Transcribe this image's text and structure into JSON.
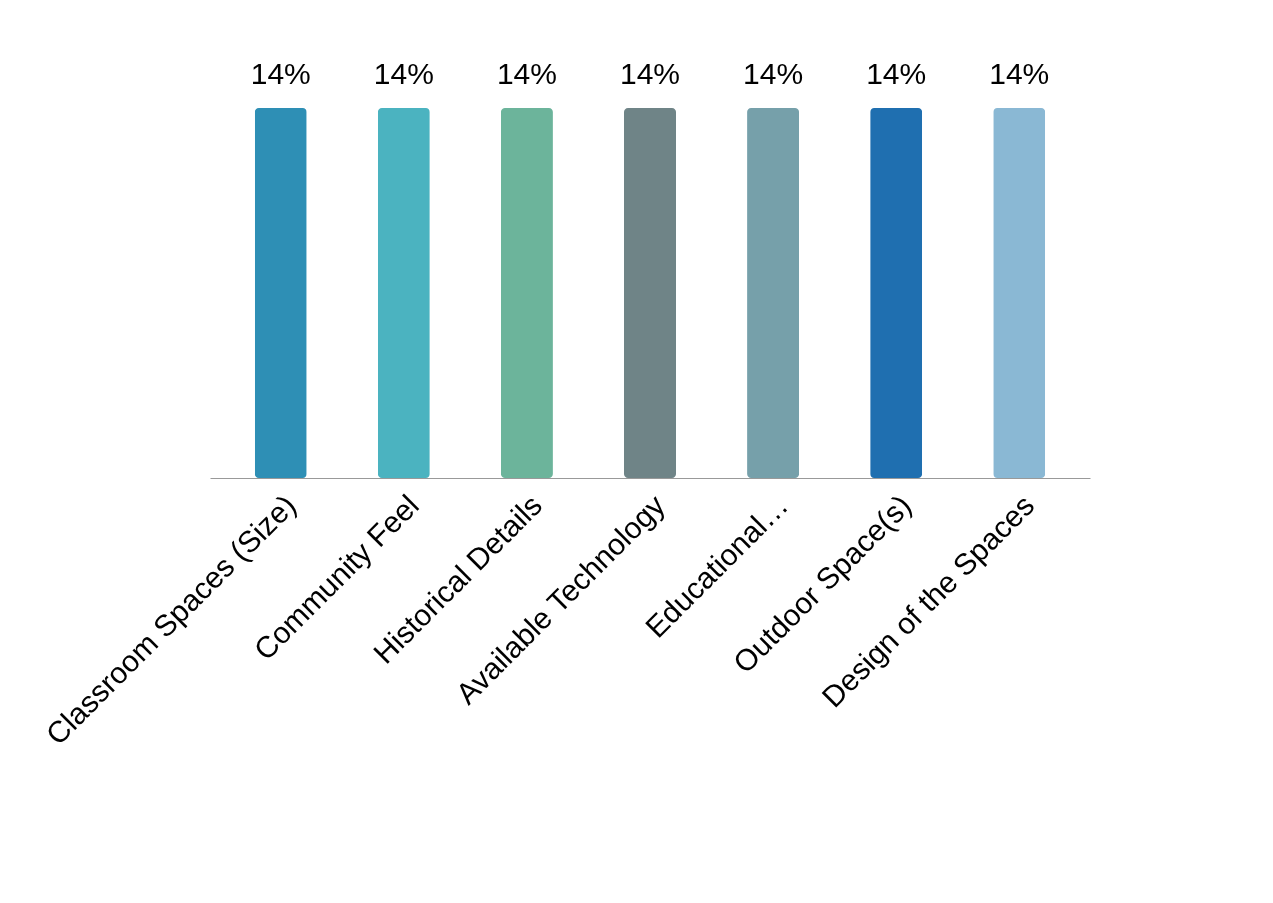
{
  "chart_data": {
    "type": "bar",
    "categories": [
      "Classroom Spaces (Size)",
      "Community Feel",
      "Historical Details",
      "Available Technology",
      "Educational…",
      "Outdoor Space(s)",
      "Design of the Spaces"
    ],
    "values": [
      14,
      14,
      14,
      14,
      14,
      14,
      14
    ],
    "colors": [
      "#2e8fb5",
      "#4bb3c0",
      "#6cb49b",
      "#6f8487",
      "#76a0aa",
      "#1f6fb0",
      "#8ab8d4"
    ],
    "value_labels": [
      "14%",
      "14%",
      "14%",
      "14%",
      "14%",
      "14%",
      "14%"
    ]
  }
}
